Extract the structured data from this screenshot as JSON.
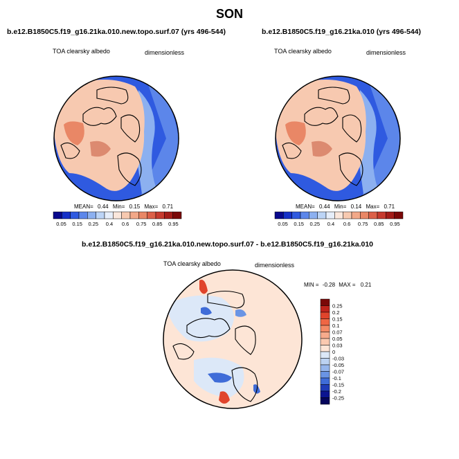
{
  "title": "SON",
  "panels": [
    {
      "case": "b.e12.B1850C5.f19_g16.21ka.010.new.topo.surf.07 (yrs 496-544)",
      "variable": "TOA clearsky albedo",
      "units": "dimensionless",
      "stats": {
        "mean_label": "MEAN=",
        "mean": "0.44",
        "min_label": "Min=",
        "min": "0.15",
        "max_label": "Max=",
        "max": "0.71"
      }
    },
    {
      "case": "b.e12.B1850C5.f19_g16.21ka.010 (yrs 496-544)",
      "variable": "TOA clearsky albedo",
      "units": "dimensionless",
      "stats": {
        "mean_label": "MEAN=",
        "mean": "0.44",
        "min_label": "Min=",
        "min": "0.14",
        "max_label": "Max=",
        "max": "0.71"
      }
    },
    {
      "case": "b.e12.B1850C5.f19_g16.21ka.010.new.topo.surf.07 - b.e12.B1850C5.f19_g16.21ka.010",
      "variable": "TOA clearsky albedo",
      "units": "dimensionless",
      "stats": {
        "min_label": "MIN =",
        "min": "-0.28",
        "max_label": "MAX =",
        "max": "0.21"
      }
    }
  ],
  "chart_data": [
    {
      "type": "heatmap",
      "projection": "north polar stereographic",
      "colorbar": {
        "orientation": "horizontal",
        "labels": [
          "0.05",
          "0.15",
          "0.25",
          "0.4",
          "0.6",
          "0.75",
          "0.85",
          "0.95"
        ],
        "colors": [
          "#08088c",
          "#1530c8",
          "#2f5ae0",
          "#5c86ea",
          "#8cb0f0",
          "#bcd4f6",
          "#e6eefa",
          "#fbe7dc",
          "#f7c9b0",
          "#f2a888",
          "#e98766",
          "#dc6048",
          "#c63a2e",
          "#a31c18",
          "#7a0808"
        ]
      },
      "stats": {
        "mean": 0.44,
        "min": 0.15,
        "max": 0.71
      }
    },
    {
      "type": "heatmap",
      "projection": "north polar stereographic",
      "colorbar": {
        "orientation": "horizontal",
        "labels": [
          "0.05",
          "0.15",
          "0.25",
          "0.4",
          "0.6",
          "0.75",
          "0.85",
          "0.95"
        ],
        "colors": [
          "#08088c",
          "#1530c8",
          "#2f5ae0",
          "#5c86ea",
          "#8cb0f0",
          "#bcd4f6",
          "#e6eefa",
          "#fbe7dc",
          "#f7c9b0",
          "#f2a888",
          "#e98766",
          "#dc6048",
          "#c63a2e",
          "#a31c18",
          "#7a0808"
        ]
      },
      "stats": {
        "mean": 0.44,
        "min": 0.14,
        "max": 0.71
      }
    },
    {
      "type": "heatmap",
      "projection": "north polar stereographic",
      "colorbar": {
        "orientation": "vertical",
        "labels": [
          "0.25",
          "0.2",
          "0.15",
          "0.1",
          "0.07",
          "0.05",
          "0.03",
          "0",
          "-0.03",
          "-0.05",
          "-0.07",
          "-0.1",
          "-0.15",
          "-0.2",
          "-0.25"
        ],
        "colors": [
          "#7a0808",
          "#c0241c",
          "#e0442c",
          "#ef6644",
          "#f48a66",
          "#f7ab8c",
          "#fac9b0",
          "#fde5d6",
          "#dce8f8",
          "#bcd2f2",
          "#96b6ec",
          "#6a94e4",
          "#3f6cd8",
          "#1f3cb8",
          "#0c1490",
          "#06065c"
        ]
      },
      "stats": {
        "min": -0.28,
        "max": 0.21
      }
    }
  ]
}
